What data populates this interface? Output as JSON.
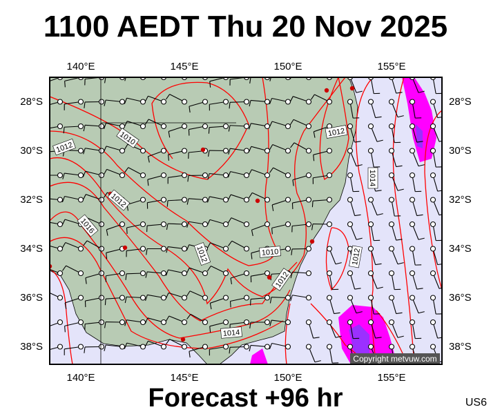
{
  "header": {
    "title": "1100 AEDT Thu 20 Nov 2025"
  },
  "footer": {
    "forecast": "Forecast +96 hr",
    "model_code": "US6"
  },
  "map": {
    "region": "South-eastern Australia",
    "lon_labels": [
      "140°E",
      "145°E",
      "150°E",
      "155°E"
    ],
    "lat_labels": [
      "28°S",
      "30°S",
      "32°S",
      "34°S",
      "36°S",
      "38°S"
    ],
    "contour_labels": [
      "1010",
      "1012",
      "1012",
      "1012",
      "1012",
      "1014",
      "1014",
      "1016",
      "1010",
      "1012",
      "1012"
    ],
    "copyright": "Copyright metvuw.com",
    "colors": {
      "land": "#b8cbb4",
      "sea": "#e4e4fa",
      "isobar": "#ff0000",
      "rain_light": "#ff00ff",
      "rain_heavy": "#8a2be2"
    }
  }
}
